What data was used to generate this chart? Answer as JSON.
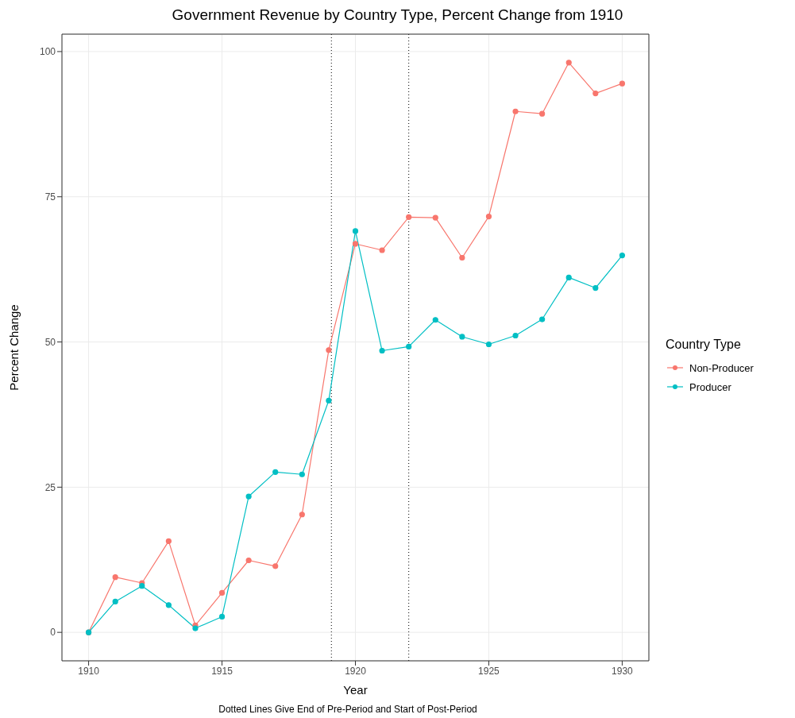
{
  "chart_data": {
    "type": "line",
    "title": "Government Revenue by Country Type, Percent Change from 1910",
    "xlabel": "Year",
    "ylabel": "Percent Change",
    "legend_title": "Country Type",
    "annotations": [
      "Dotted Lines Give End of Pre-Period and Start of Post-Period"
    ],
    "x": [
      1910,
      1911,
      1912,
      1913,
      1914,
      1915,
      1916,
      1917,
      1918,
      1919,
      1920,
      1921,
      1922,
      1923,
      1924,
      1925,
      1926,
      1927,
      1928,
      1929,
      1930
    ],
    "series": [
      {
        "name": "Non-Producer",
        "color": "#f8766d",
        "values": [
          0,
          9.5,
          8.5,
          15.7,
          1.2,
          6.8,
          12.4,
          11.4,
          20.3,
          48.6,
          66.9,
          65.8,
          71.5,
          71.4,
          64.5,
          71.6,
          89.7,
          89.3,
          98.1,
          92.8,
          94.5
        ]
      },
      {
        "name": "Producer",
        "color": "#00bfc4",
        "values": [
          0,
          5.3,
          8.0,
          4.7,
          0.7,
          2.7,
          23.4,
          27.6,
          27.2,
          39.9,
          69.1,
          48.5,
          49.2,
          53.8,
          50.9,
          49.6,
          51.1,
          53.9,
          61.1,
          59.3,
          64.9
        ]
      }
    ],
    "xlim": [
      1909,
      1931
    ],
    "xticks": [
      1910,
      1915,
      1920,
      1925,
      1930
    ],
    "ylim": [
      -4.9,
      103
    ],
    "yticks": [
      0,
      25,
      50,
      75,
      100
    ],
    "ref_lines": [
      {
        "axis": "x",
        "value": 1919.1,
        "line_style": "dotted",
        "color": "#000000"
      },
      {
        "axis": "x",
        "value": 1922,
        "line_style": "dotted",
        "color": "#000000"
      }
    ],
    "grid": true,
    "legend": "right",
    "marker": "circle",
    "line_style": "solid"
  }
}
